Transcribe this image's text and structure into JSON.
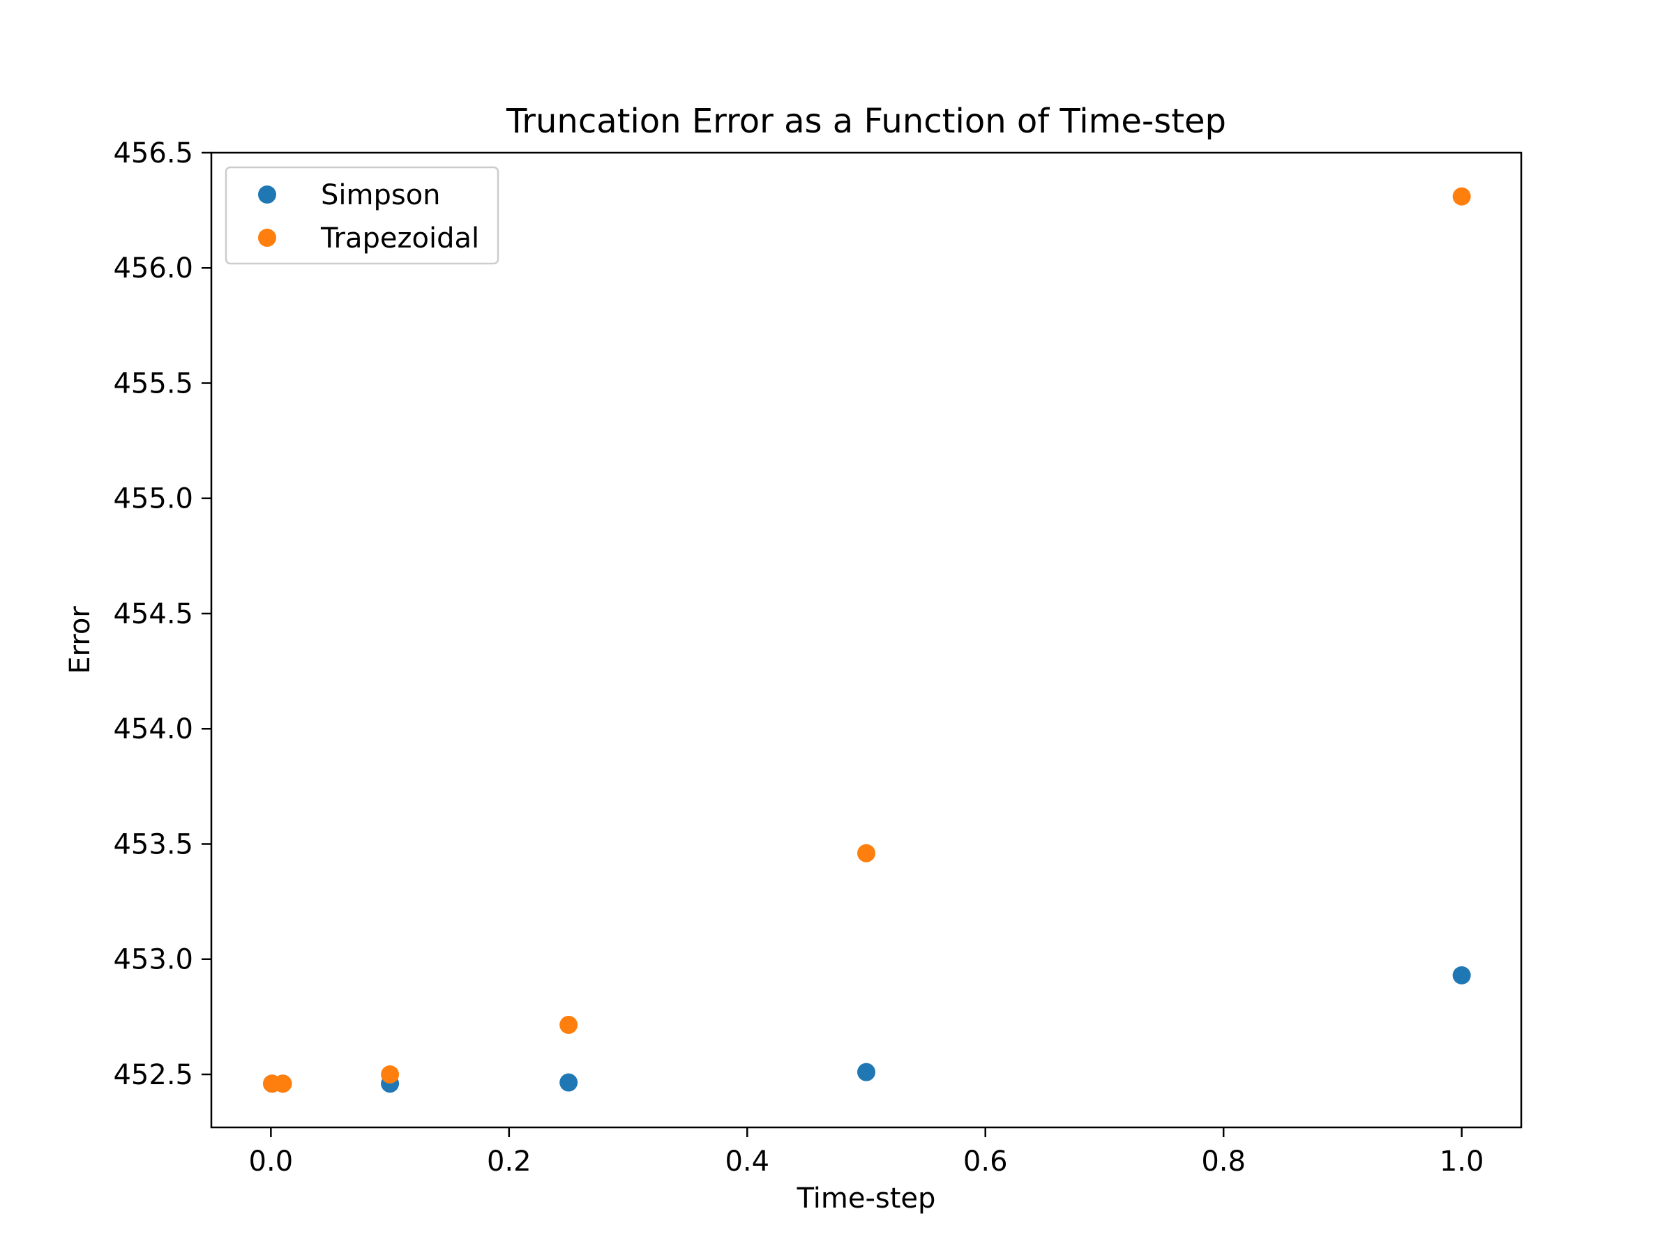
{
  "chart_data": {
    "type": "scatter",
    "title": "Truncation Error as a Function of Time-step",
    "xlabel": "Time-step",
    "ylabel": "Error",
    "xlim": [
      -0.05,
      1.05
    ],
    "ylim": [
      452.27,
      456.5
    ],
    "xticks": [
      0.0,
      0.2,
      0.4,
      0.6,
      0.8,
      1.0
    ],
    "xtick_labels": [
      "0.0",
      "0.2",
      "0.4",
      "0.6",
      "0.8",
      "1.0"
    ],
    "yticks": [
      452.5,
      453.0,
      453.5,
      454.0,
      454.5,
      455.0,
      455.5,
      456.0,
      456.5
    ],
    "ytick_labels": [
      "452.5",
      "453.0",
      "453.5",
      "454.0",
      "454.5",
      "455.0",
      "455.5",
      "456.0",
      "456.5"
    ],
    "grid": false,
    "legend_position": "top-left",
    "series": [
      {
        "name": "Simpson",
        "color": "#1f77b4",
        "points": [
          {
            "x": 0.001,
            "y": 452.46
          },
          {
            "x": 0.01,
            "y": 452.46
          },
          {
            "x": 0.1,
            "y": 452.46
          },
          {
            "x": 0.25,
            "y": 452.465
          },
          {
            "x": 0.5,
            "y": 452.51
          },
          {
            "x": 1.0,
            "y": 452.93
          }
        ]
      },
      {
        "name": "Trapezoidal",
        "color": "#ff7f0e",
        "points": [
          {
            "x": 0.001,
            "y": 452.46
          },
          {
            "x": 0.01,
            "y": 452.46
          },
          {
            "x": 0.1,
            "y": 452.5
          },
          {
            "x": 0.25,
            "y": 452.715
          },
          {
            "x": 0.5,
            "y": 453.46
          },
          {
            "x": 1.0,
            "y": 456.31
          }
        ]
      }
    ]
  }
}
